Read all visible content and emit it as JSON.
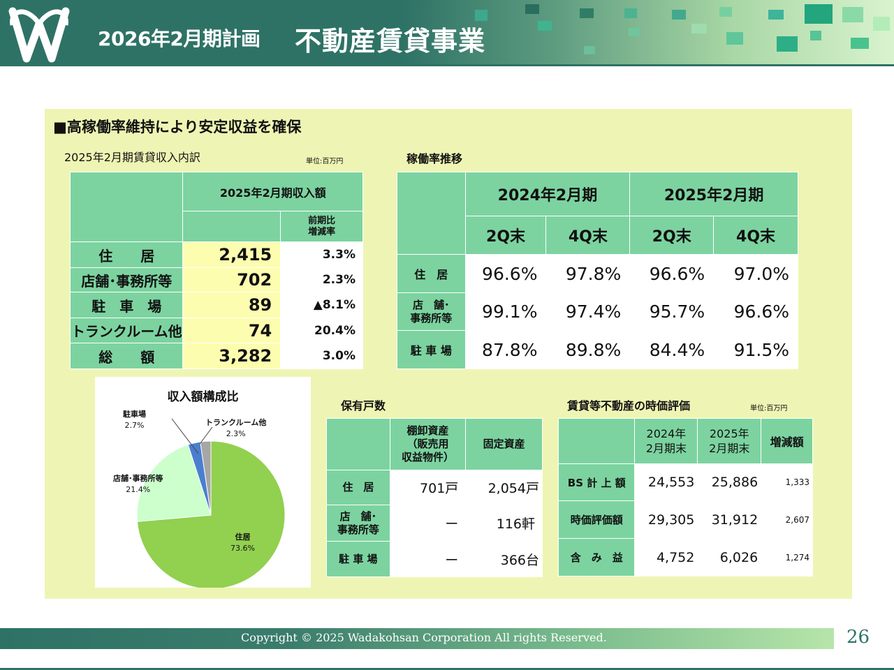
{
  "header": {
    "subtitle": "2026年2月期計画",
    "title": "不動産賃貸事業"
  },
  "main_heading": "■高稼働率維持により安定収益を確保",
  "income": {
    "title": "2025年2月期賃貸収入内訳",
    "unit": "単位:百万円",
    "col_amount": "2025年2月期収入額",
    "col_change": "前期比\n増減率",
    "rows": [
      {
        "label": "住　　居",
        "amount": "2,415",
        "change": "3.3%"
      },
      {
        "label": "店舗･事務所等",
        "amount": "702",
        "change": "2.3%"
      },
      {
        "label": "駐　車　場",
        "amount": "89",
        "change": "▲8.1%"
      },
      {
        "label": "トランクルーム他",
        "amount": "74",
        "change": "20.4%"
      },
      {
        "label": "総　　額",
        "amount": "3,282",
        "change": "3.0%"
      }
    ]
  },
  "occupancy": {
    "title": "稼働率推移",
    "periods": [
      "2024年2月期",
      "2025年2月期"
    ],
    "quarters": [
      "2Q末",
      "4Q末",
      "2Q末",
      "4Q末"
    ],
    "rows": [
      {
        "label": "住　居",
        "values": [
          "96.6%",
          "97.8%",
          "96.6%",
          "97.0%"
        ]
      },
      {
        "label": "店　舗･\n事務所等",
        "values": [
          "99.1%",
          "97.4%",
          "95.7%",
          "96.6%"
        ]
      },
      {
        "label": "駐 車 場",
        "values": [
          "87.8%",
          "89.8%",
          "84.4%",
          "91.5%"
        ]
      }
    ]
  },
  "chart_data": {
    "type": "pie",
    "title": "収入額構成比",
    "slices": [
      {
        "name": "住居",
        "value": 73.6,
        "label": "73.6%",
        "color": "#92d050"
      },
      {
        "name": "店舗･事務所等",
        "value": 21.4,
        "label": "21.4%",
        "color": "#ccffcc"
      },
      {
        "name": "駐車場",
        "value": 2.7,
        "label": "2.7%",
        "color": "#4a7fd0"
      },
      {
        "name": "トランクルーム他",
        "value": 2.3,
        "label": "2.3%",
        "color": "#a6a6a6"
      }
    ]
  },
  "units": {
    "title": "保有戸数",
    "col_inventory": "棚卸資産\n（販売用\n収益物件）",
    "col_fixed": "固定資産",
    "rows": [
      {
        "label": "住　居",
        "inventory": "701戸",
        "fixed": "2,054戸"
      },
      {
        "label": "店　舗･\n事務所等",
        "inventory": "ー",
        "fixed": "116軒"
      },
      {
        "label": "駐 車 場",
        "inventory": "ー",
        "fixed": "366台"
      }
    ]
  },
  "fairvalue": {
    "title": "賃貸等不動産の時価評価",
    "unit": "単位:百万円",
    "cols": [
      "2024年\n2月期末",
      "2025年\n2月期末",
      "増減額"
    ],
    "rows": [
      {
        "label": "BS 計 上 額",
        "v2024": "24,553",
        "v2025": "25,886",
        "diff": "1,333"
      },
      {
        "label": "時価評価額",
        "v2024": "29,305",
        "v2025": "31,912",
        "diff": "2,607"
      },
      {
        "label": "含　み　益",
        "v2024": "4,752",
        "v2025": "6,026",
        "diff": "1,274"
      }
    ]
  },
  "footer": {
    "copyright": "Copyright © 2025  Wadakohsan Corporation All rights Reserved.",
    "page": "26"
  },
  "colors": {
    "header": "#2e7266",
    "panel": "#eef5b4",
    "table_green": "#7cd3a0",
    "highlight": "#fdfdb0"
  }
}
